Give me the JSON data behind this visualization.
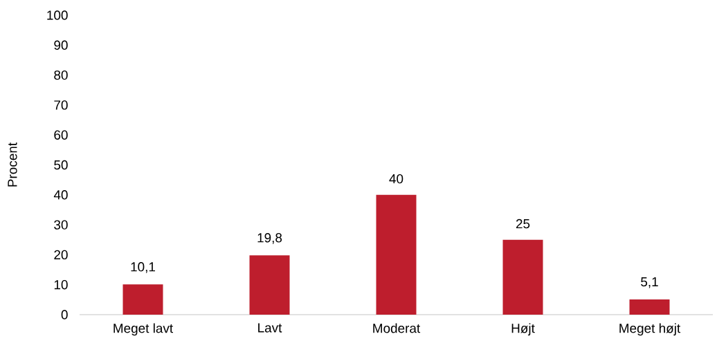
{
  "chart_data": {
    "type": "bar",
    "ylabel": "Procent",
    "categories": [
      "Meget lavt",
      "Lavt",
      "Moderat",
      "Højt",
      "Meget højt"
    ],
    "values": [
      10.1,
      19.8,
      40,
      25,
      5.1
    ],
    "value_labels": [
      "10,1",
      "19,8",
      "40",
      "25",
      "5,1"
    ],
    "color": "#be1e2d",
    "ylim": [
      0,
      100
    ],
    "yticks": [
      0,
      10,
      20,
      30,
      40,
      50,
      60,
      70,
      80,
      90,
      100
    ]
  }
}
